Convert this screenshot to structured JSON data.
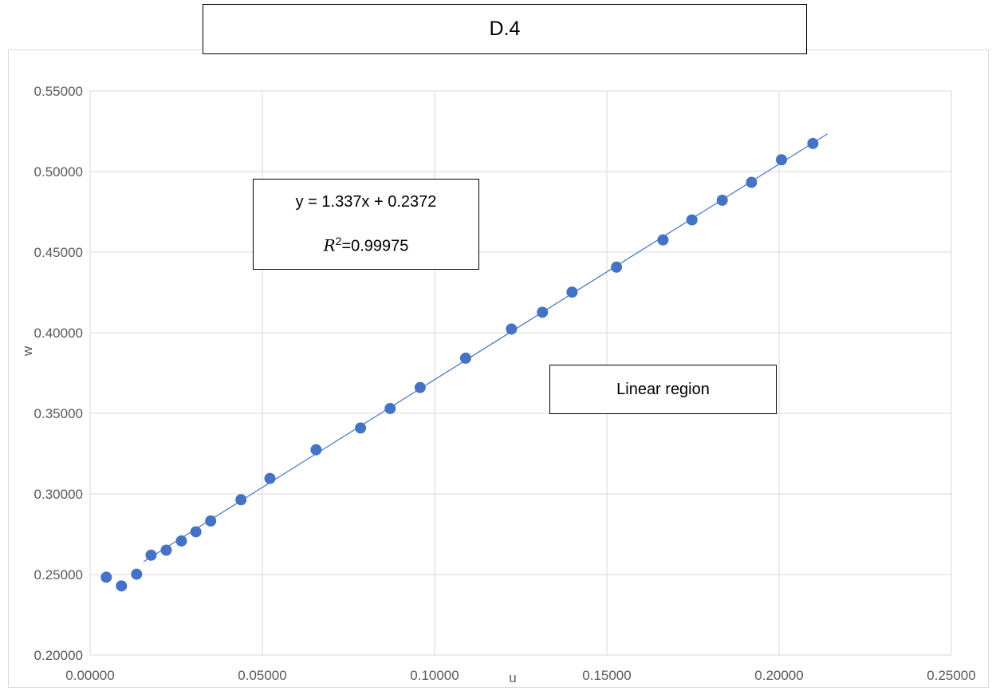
{
  "chart_data": {
    "type": "scatter",
    "title": "D.4",
    "xlabel": "u",
    "ylabel": "w",
    "xlim": [
      0,
      0.25
    ],
    "ylim": [
      0.2,
      0.55
    ],
    "x_ticks": [
      "0.00000",
      "0.05000",
      "0.10000",
      "0.15000",
      "0.20000",
      "0.25000"
    ],
    "y_ticks": [
      "0.20000",
      "0.25000",
      "0.30000",
      "0.35000",
      "0.40000",
      "0.45000",
      "0.50000",
      "0.55000"
    ],
    "grid": true,
    "marker_color": "#4472C4",
    "trendline_color": "#4472C4",
    "series": [
      {
        "x": [
          0.0047,
          0.0091,
          0.0135,
          0.0177,
          0.0221,
          0.0265,
          0.0307,
          0.035,
          0.0438,
          0.0522,
          0.0656,
          0.0785,
          0.0871,
          0.0958,
          0.109,
          0.1223,
          0.1313,
          0.1399,
          0.1528,
          0.1663,
          0.1747,
          0.1835,
          0.192,
          0.2007,
          0.2098
        ],
        "y": [
          0.2483,
          0.2429,
          0.2502,
          0.262,
          0.2651,
          0.2708,
          0.2765,
          0.2832,
          0.2964,
          0.3096,
          0.3274,
          0.3409,
          0.353,
          0.366,
          0.3842,
          0.4023,
          0.4127,
          0.4252,
          0.4407,
          0.4576,
          0.47,
          0.4822,
          0.4933,
          0.5073,
          0.5174
        ]
      }
    ],
    "trendline": {
      "slope": 1.337,
      "intercept": 0.2372,
      "x_range": [
        0.0155,
        0.214
      ]
    },
    "annotations": {
      "equation": "y = 1.337x + 0.2372",
      "r2_symbol": "R",
      "r2_exponent": "2",
      "r2_value": "=0.99975",
      "region_label": "Linear region"
    }
  }
}
